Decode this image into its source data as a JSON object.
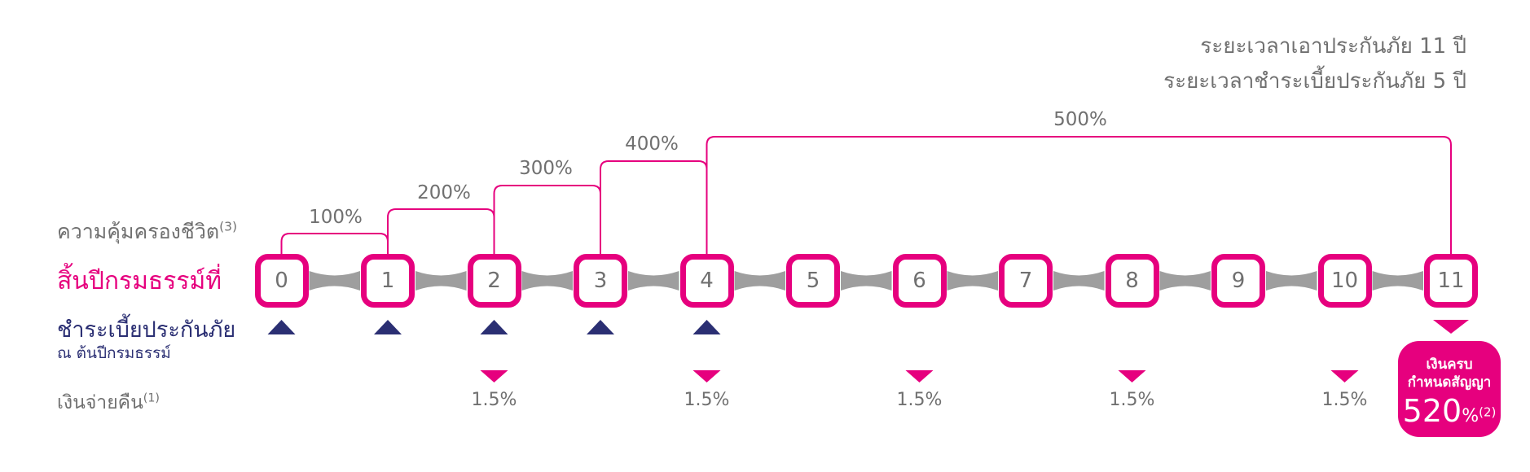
{
  "term": {
    "coverage_period": "ระยะเวลาเอาประกันภัย 11 ปี",
    "payment_period": "ระยะเวลาชำระเบี้ยประกันภัย 5 ปี"
  },
  "labels": {
    "life_coverage": "ความคุ้มครองชีวิต",
    "life_coverage_note": "(3)",
    "policy_year_end": "สิ้นปีกรมธรรม์ที่",
    "premium_payment": "ชำระเบี้ยประกันภัย",
    "premium_payment_sub": "ณ ต้นปีกรมธรรม์",
    "payout": "เงินจ่ายคืน",
    "payout_note": "(1)"
  },
  "coverage_steps": [
    "100%",
    "200%",
    "300%",
    "400%",
    "500%"
  ],
  "years": [
    "0",
    "1",
    "2",
    "3",
    "4",
    "5",
    "6",
    "7",
    "8",
    "9",
    "10",
    "11"
  ],
  "premium_paid_years": [
    0,
    1,
    2,
    3,
    4
  ],
  "payouts": [
    {
      "year": 2,
      "value": "1.5%"
    },
    {
      "year": 4,
      "value": "1.5%"
    },
    {
      "year": 6,
      "value": "1.5%"
    },
    {
      "year": 8,
      "value": "1.5%"
    },
    {
      "year": 10,
      "value": "1.5%"
    }
  ],
  "maturity": {
    "year": 11,
    "title_line1": "เงินครบ",
    "title_line2": "กำหนดสัญญา",
    "value": "520",
    "unit": "%",
    "note": "(2)"
  },
  "colors": {
    "pink": "#e6007e",
    "navy": "#2b2f73",
    "gray_text": "#707070",
    "connector": "#9e9e9e"
  },
  "icons": {
    "premium_marker": "navy-up-triangle-icon",
    "payout_marker": "pink-down-triangle-icon"
  }
}
